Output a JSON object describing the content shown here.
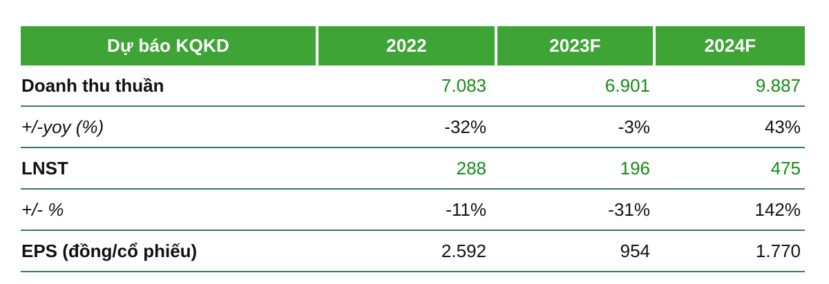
{
  "table": {
    "header": {
      "label": "Dự báo KQKD",
      "years": [
        "2022",
        "2023F",
        "2024F"
      ]
    },
    "rows": [
      {
        "label": "Doanh thu thuần",
        "values": [
          "7.083",
          "6.901",
          "9.887"
        ]
      },
      {
        "label": "+/-yoy (%)",
        "values": [
          "-32%",
          "-3%",
          "43%"
        ]
      },
      {
        "label": "LNST",
        "values": [
          "288",
          "196",
          "475"
        ]
      },
      {
        "label": "+/- %",
        "values": [
          "-11%",
          "-31%",
          "142%"
        ]
      },
      {
        "label": "EPS (đồng/cổ phiếu)",
        "values": [
          "2.592",
          "954",
          "1.770"
        ]
      }
    ],
    "colors": {
      "header_bg": "#3EA435",
      "header_text": "#FFFFFF",
      "value_green": "#148C14",
      "row_line_green": "#2F7D4C",
      "text": "#111111"
    }
  },
  "chart_data": {
    "type": "table",
    "title": "Dự báo KQKD",
    "columns": [
      "Dự báo KQKD",
      "2022",
      "2023F",
      "2024F"
    ],
    "rows": [
      [
        "Doanh thu thuần",
        "7.083",
        "6.901",
        "9.887"
      ],
      [
        "+/-yoy (%)",
        "-32%",
        "-3%",
        "43%"
      ],
      [
        "LNST",
        "288",
        "196",
        "475"
      ],
      [
        "+/- %",
        "-11%",
        "-31%",
        "142%"
      ],
      [
        "EPS (đồng/cổ phiếu)",
        "2.592",
        "954",
        "1.770"
      ]
    ]
  }
}
